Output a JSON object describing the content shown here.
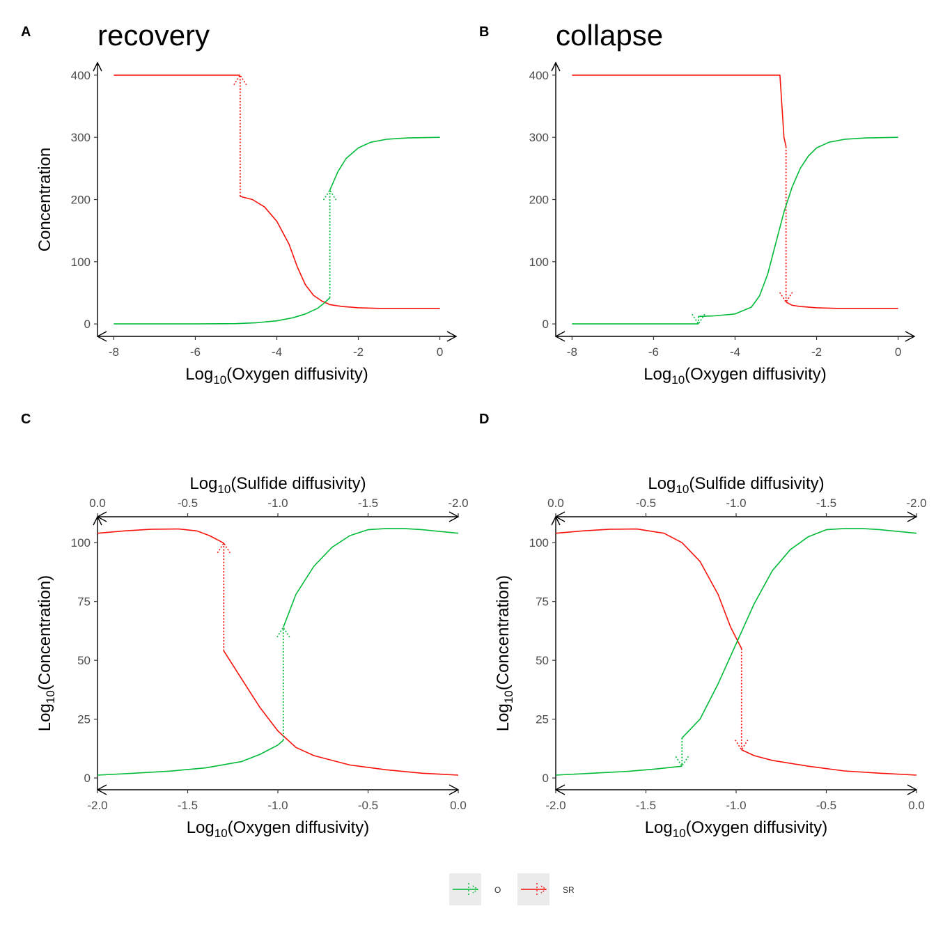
{
  "colors": {
    "O": "#00BA38",
    "SR": "#F8110B",
    "axis": "#000000",
    "tick_label": "#4d4d4d",
    "legend_key_bg": "#ebebeb"
  },
  "legend": {
    "position": "bottom",
    "items": [
      {
        "key": "O",
        "label": "O",
        "color": "#00BA38"
      },
      {
        "key": "SR",
        "label": "SR",
        "color": "#F8110B"
      }
    ]
  },
  "chart_data": [
    {
      "panel": "A",
      "title": "recovery",
      "type": "line",
      "xlabel": {
        "prefix": "Log",
        "sub": "10",
        "suffix": "(Oxygen diffusivity)"
      },
      "ylabel": {
        "text": "Concentration"
      },
      "xlim": [
        -8.4,
        0.4
      ],
      "ylim": [
        -20,
        420
      ],
      "xticks": [
        -8,
        -6,
        -4,
        -2,
        0
      ],
      "xtick_labels": [
        "-8",
        "-6",
        "-4",
        "-2",
        "0"
      ],
      "yticks": [
        0,
        100,
        200,
        300,
        400
      ],
      "ytick_labels": [
        "0",
        "100",
        "200",
        "300",
        "400"
      ],
      "series": [
        {
          "name": "SR",
          "points": [
            [
              -8,
              400
            ],
            [
              -7,
              400
            ],
            [
              -6,
              400
            ],
            [
              -5,
              400
            ],
            [
              -4.9,
              400
            ]
          ]
        },
        {
          "name": "SR",
          "points": [
            [
              -4.9,
              205
            ],
            [
              -4.6,
              200
            ],
            [
              -4.3,
              188
            ],
            [
              -4.0,
              165
            ],
            [
              -3.7,
              128
            ],
            [
              -3.5,
              92
            ],
            [
              -3.3,
              63
            ],
            [
              -3.1,
              46
            ],
            [
              -2.9,
              37
            ],
            [
              -2.7,
              31
            ],
            [
              -2.4,
              28
            ],
            [
              -2.0,
              26
            ],
            [
              -1.5,
              25
            ],
            [
              -1,
              25
            ],
            [
              0,
              25
            ]
          ]
        },
        {
          "name": "SR",
          "style": "jump",
          "points": [
            [
              -4.9,
              205
            ],
            [
              -4.9,
              400
            ]
          ]
        },
        {
          "name": "O",
          "points": [
            [
              -8,
              0
            ],
            [
              -6,
              0
            ],
            [
              -5,
              0.5
            ],
            [
              -4.5,
              2
            ],
            [
              -4,
              5
            ],
            [
              -3.6,
              10
            ],
            [
              -3.3,
              16
            ],
            [
              -3.0,
              25
            ],
            [
              -2.85,
              33
            ],
            [
              -2.7,
              42
            ]
          ]
        },
        {
          "name": "O",
          "points": [
            [
              -2.7,
              215
            ],
            [
              -2.5,
              245
            ],
            [
              -2.3,
              266
            ],
            [
              -2.0,
              283
            ],
            [
              -1.7,
              292
            ],
            [
              -1.3,
              297
            ],
            [
              -0.8,
              299
            ],
            [
              0,
              300
            ]
          ]
        },
        {
          "name": "O",
          "style": "jump",
          "points": [
            [
              -2.7,
              42
            ],
            [
              -2.7,
              215
            ]
          ]
        }
      ]
    },
    {
      "panel": "B",
      "title": "collapse",
      "type": "line",
      "xlabel": {
        "prefix": "Log",
        "sub": "10",
        "suffix": "(Oxygen diffusivity)"
      },
      "ylabel": null,
      "xlim": [
        -8.4,
        0.4
      ],
      "ylim": [
        -20,
        420
      ],
      "xticks": [
        -8,
        -6,
        -4,
        -2,
        0
      ],
      "xtick_labels": [
        "-8",
        "-6",
        "-4",
        "-2",
        "0"
      ],
      "yticks": [
        0,
        100,
        200,
        300,
        400
      ],
      "ytick_labels": [
        "0",
        "100",
        "200",
        "300",
        "400"
      ],
      "series": [
        {
          "name": "SR",
          "points": [
            [
              -8,
              400
            ],
            [
              -5,
              400
            ],
            [
              -3,
              400
            ],
            [
              -2.9,
              400
            ],
            [
              -2.85,
              350
            ],
            [
              -2.8,
              300
            ],
            [
              -2.75,
              285
            ]
          ]
        },
        {
          "name": "SR",
          "points": [
            [
              -2.75,
              35
            ],
            [
              -2.6,
              30
            ],
            [
              -2.4,
              28
            ],
            [
              -2.0,
              26
            ],
            [
              -1.5,
              25
            ],
            [
              0,
              25
            ]
          ]
        },
        {
          "name": "SR",
          "style": "jump",
          "points": [
            [
              -2.75,
              285
            ],
            [
              -2.75,
              35
            ]
          ]
        },
        {
          "name": "O",
          "points": [
            [
              -8,
              0
            ],
            [
              -6,
              0
            ],
            [
              -5.2,
              0
            ],
            [
              -4.9,
              0
            ]
          ]
        },
        {
          "name": "O",
          "points": [
            [
              -4.9,
              12
            ],
            [
              -4.5,
              13
            ],
            [
              -4.0,
              16
            ],
            [
              -3.6,
              27
            ],
            [
              -3.4,
              45
            ],
            [
              -3.2,
              80
            ],
            [
              -3.0,
              130
            ],
            [
              -2.8,
              180
            ],
            [
              -2.6,
              220
            ],
            [
              -2.4,
              250
            ],
            [
              -2.2,
              270
            ],
            [
              -2.0,
              283
            ],
            [
              -1.7,
              292
            ],
            [
              -1.3,
              297
            ],
            [
              -0.8,
              299
            ],
            [
              0,
              300
            ]
          ]
        },
        {
          "name": "O",
          "style": "jump",
          "points": [
            [
              -4.9,
              12
            ],
            [
              -4.9,
              0
            ]
          ]
        }
      ]
    },
    {
      "panel": "C",
      "type": "line",
      "xlabel": {
        "prefix": "Log",
        "sub": "10",
        "suffix": "(Oxygen diffusivity)"
      },
      "x2label": {
        "prefix": "Log",
        "sub": "10",
        "suffix": "(Sulfide diffusivity)"
      },
      "ylabel": {
        "prefix": "Log",
        "sub": "10",
        "suffix": "(Concentration)"
      },
      "xlim": [
        -2.0,
        0.0
      ],
      "ylim": [
        -5,
        111
      ],
      "xticks": [
        -2.0,
        -1.5,
        -1.0,
        -0.5,
        0.0
      ],
      "xtick_labels": [
        "-2.0",
        "-1.5",
        "-1.0",
        "-0.5",
        "0.0"
      ],
      "x2ticks": [
        -2.0,
        -1.5,
        -1.0,
        -0.5,
        0.0
      ],
      "x2tick_labels": [
        "0.0",
        "-0.5",
        "-1.0",
        "-1.5",
        "-2.0"
      ],
      "yticks": [
        0,
        25,
        50,
        75,
        100
      ],
      "ytick_labels": [
        "0",
        "25",
        "50",
        "75",
        "100"
      ],
      "series": [
        {
          "name": "SR",
          "points": [
            [
              -2,
              104
            ],
            [
              -1.85,
              105
            ],
            [
              -1.7,
              105.7
            ],
            [
              -1.55,
              105.8
            ],
            [
              -1.45,
              105
            ],
            [
              -1.38,
              103
            ],
            [
              -1.3,
              99.8
            ]
          ]
        },
        {
          "name": "SR",
          "points": [
            [
              -1.3,
              54
            ],
            [
              -1.2,
              42
            ],
            [
              -1.1,
              30
            ],
            [
              -1.0,
              20
            ],
            [
              -0.9,
              13
            ],
            [
              -0.8,
              9.5
            ],
            [
              -0.6,
              5.5
            ],
            [
              -0.4,
              3.5
            ],
            [
              -0.2,
              2
            ],
            [
              0,
              1.2
            ]
          ]
        },
        {
          "name": "SR",
          "style": "jump",
          "points": [
            [
              -1.3,
              54
            ],
            [
              -1.3,
              99.8
            ]
          ]
        },
        {
          "name": "O",
          "points": [
            [
              -2,
              1.2
            ],
            [
              -1.8,
              2
            ],
            [
              -1.6,
              2.9
            ],
            [
              -1.4,
              4.3
            ],
            [
              -1.2,
              7
            ],
            [
              -1.1,
              10
            ],
            [
              -1.0,
              14
            ],
            [
              -0.97,
              16
            ]
          ]
        },
        {
          "name": "O",
          "points": [
            [
              -0.97,
              64
            ],
            [
              -0.9,
              78
            ],
            [
              -0.8,
              90
            ],
            [
              -0.7,
              98
            ],
            [
              -0.6,
              103
            ],
            [
              -0.5,
              105.5
            ],
            [
              -0.4,
              106
            ],
            [
              -0.3,
              106
            ],
            [
              -0.2,
              105.5
            ],
            [
              0,
              104
            ]
          ]
        },
        {
          "name": "O",
          "style": "jump",
          "points": [
            [
              -0.97,
              16
            ],
            [
              -0.97,
              64
            ]
          ]
        }
      ]
    },
    {
      "panel": "D",
      "type": "line",
      "xlabel": {
        "prefix": "Log",
        "sub": "10",
        "suffix": "(Oxygen diffusivity)"
      },
      "x2label": {
        "prefix": "Log",
        "sub": "10",
        "suffix": "(Sulfide diffusivity)"
      },
      "ylabel": {
        "prefix": "Log",
        "sub": "10",
        "suffix": "(Concentration)"
      },
      "xlim": [
        -2.0,
        0.0
      ],
      "ylim": [
        -5,
        111
      ],
      "xticks": [
        -2.0,
        -1.5,
        -1.0,
        -0.5,
        0.0
      ],
      "xtick_labels": [
        "-2.0",
        "-1.5",
        "-1.0",
        "-0.5",
        "0.0"
      ],
      "x2ticks": [
        -2.0,
        -1.5,
        -1.0,
        -0.5,
        0.0
      ],
      "x2tick_labels": [
        "0.0",
        "-0.5",
        "-1.0",
        "-1.5",
        "-2.0"
      ],
      "yticks": [
        0,
        25,
        50,
        75,
        100
      ],
      "ytick_labels": [
        "0",
        "25",
        "50",
        "75",
        "100"
      ],
      "series": [
        {
          "name": "SR",
          "points": [
            [
              -2,
              104
            ],
            [
              -1.85,
              105
            ],
            [
              -1.7,
              105.7
            ],
            [
              -1.55,
              105.8
            ],
            [
              -1.4,
              104
            ],
            [
              -1.3,
              100
            ],
            [
              -1.2,
              92
            ],
            [
              -1.1,
              78
            ],
            [
              -1.03,
              64
            ],
            [
              -0.97,
              55
            ]
          ]
        },
        {
          "name": "SR",
          "points": [
            [
              -0.97,
              12
            ],
            [
              -0.9,
              9.5
            ],
            [
              -0.8,
              7.5
            ],
            [
              -0.6,
              5
            ],
            [
              -0.4,
              3
            ],
            [
              -0.2,
              2
            ],
            [
              0,
              1.2
            ]
          ]
        },
        {
          "name": "SR",
          "style": "jump",
          "points": [
            [
              -0.97,
              55
            ],
            [
              -0.97,
              12
            ]
          ]
        },
        {
          "name": "O",
          "points": [
            [
              -2,
              1.2
            ],
            [
              -1.8,
              2
            ],
            [
              -1.6,
              2.8
            ],
            [
              -1.45,
              3.8
            ],
            [
              -1.3,
              5
            ]
          ]
        },
        {
          "name": "O",
          "points": [
            [
              -1.3,
              17
            ],
            [
              -1.2,
              25
            ],
            [
              -1.1,
              40
            ],
            [
              -1.0,
              57
            ],
            [
              -0.9,
              74
            ],
            [
              -0.8,
              88
            ],
            [
              -0.7,
              97
            ],
            [
              -0.6,
              102.5
            ],
            [
              -0.5,
              105.5
            ],
            [
              -0.4,
              106
            ],
            [
              -0.3,
              106
            ],
            [
              -0.2,
              105.5
            ],
            [
              0,
              104
            ]
          ]
        },
        {
          "name": "O",
          "style": "jump",
          "points": [
            [
              -1.3,
              17
            ],
            [
              -1.3,
              5
            ]
          ]
        }
      ]
    }
  ]
}
